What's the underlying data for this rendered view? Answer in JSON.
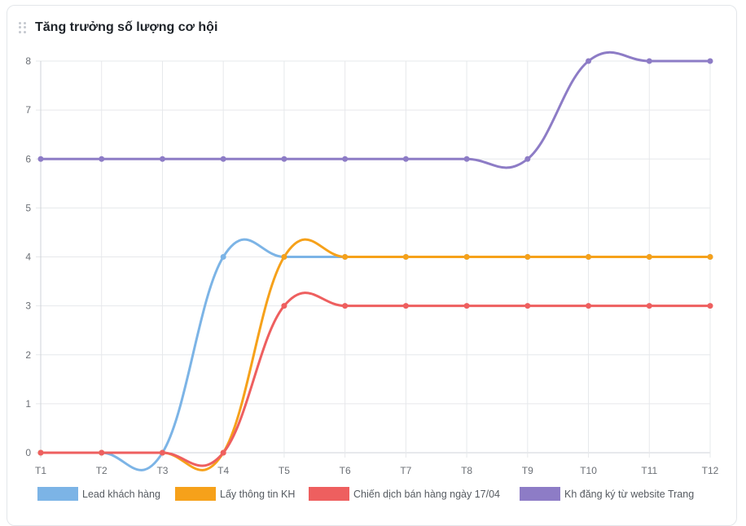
{
  "header": {
    "title": "Tăng trưởng số lượng cơ hội",
    "drag_icon": "drag-handle-icon"
  },
  "chart_data": {
    "type": "line",
    "title": "Tăng trưởng số lượng cơ hội",
    "categories": [
      "T1",
      "T2",
      "T3",
      "T4",
      "T5",
      "T6",
      "T7",
      "T8",
      "T9",
      "T10",
      "T11",
      "T12"
    ],
    "ylim": [
      0,
      8
    ],
    "yticks": [
      0,
      1,
      2,
      3,
      4,
      5,
      6,
      7,
      8
    ],
    "grid": true,
    "legend": "bottom",
    "series": [
      {
        "name": "Lead khách hàng",
        "color": "#7cb4e6",
        "values": [
          0,
          0,
          0,
          4,
          4,
          4,
          4,
          4,
          4,
          4,
          4,
          4
        ]
      },
      {
        "name": "Lấy thông tin KH",
        "color": "#f6a11a",
        "values": [
          0,
          0,
          0,
          0,
          4,
          4,
          4,
          4,
          4,
          4,
          4,
          4
        ]
      },
      {
        "name": "Chiến dịch bán hàng ngày 17/04",
        "color": "#ee5f5f",
        "values": [
          0,
          0,
          0,
          0,
          3,
          3,
          3,
          3,
          3,
          3,
          3,
          3
        ]
      },
      {
        "name": "Kh đăng ký từ website Trang",
        "color": "#8d7cc6",
        "values": [
          6,
          6,
          6,
          6,
          6,
          6,
          6,
          6,
          6,
          8,
          8,
          8
        ]
      }
    ]
  }
}
